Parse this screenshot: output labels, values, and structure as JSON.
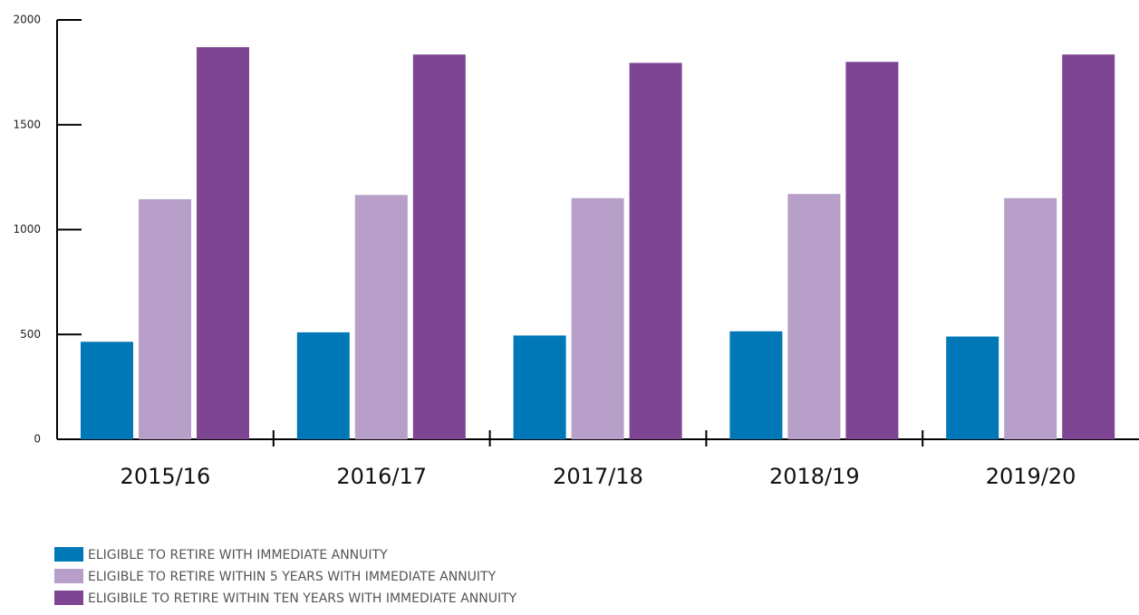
{
  "chart_data": {
    "type": "bar",
    "categories": [
      "2015/16",
      "2016/17",
      "2017/18",
      "2018/19",
      "2019/20"
    ],
    "series": [
      {
        "name": "ELIGIBLE TO RETIRE WITH IMMEDIATE ANNUITY",
        "color": "#0077b6",
        "values": [
          465,
          510,
          495,
          515,
          490
        ]
      },
      {
        "name": "ELIGIBLE TO RETIRE WITHIN 5 YEARS WITH IMMEDIATE ANNUITY",
        "color": "#b79fc9",
        "values": [
          1145,
          1165,
          1150,
          1170,
          1150
        ]
      },
      {
        "name": "ELIGIBILE TO RETIRE WITHIN TEN YEARS WITH IMMEDIATE ANNUITY",
        "color": "#7e4593",
        "values": [
          1870,
          1835,
          1795,
          1800,
          1835
        ]
      }
    ],
    "ylim": [
      0,
      2000
    ],
    "yticks": [
      0,
      500,
      1000,
      1500,
      2000
    ],
    "grid": false,
    "legend": "bottom-left"
  }
}
